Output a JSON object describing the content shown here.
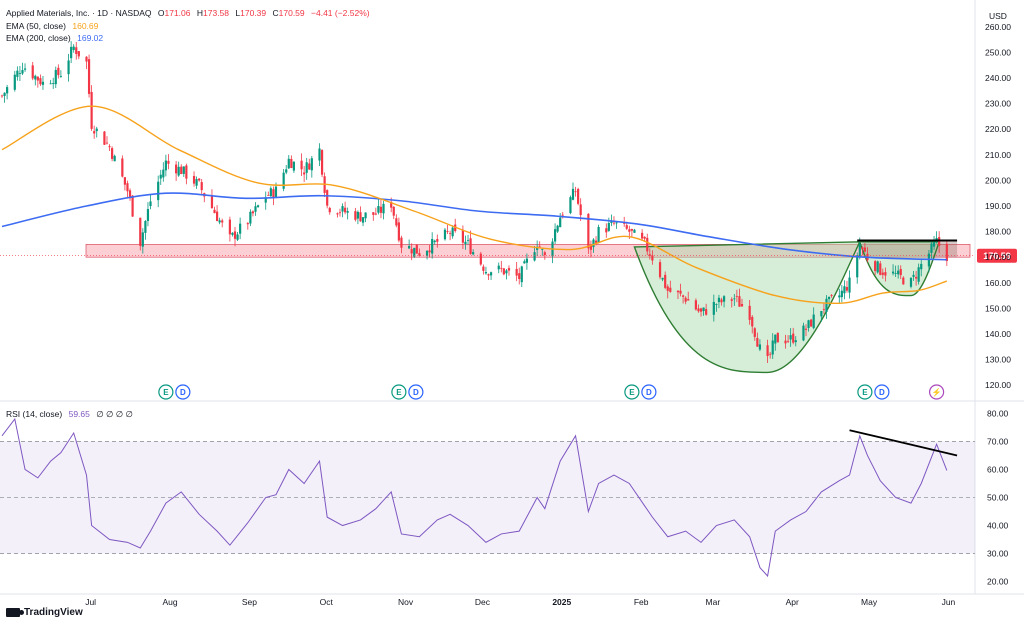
{
  "header": {
    "symbol": "Applied Materials, Inc. · 1D · NASDAQ",
    "open_label": "O",
    "open": "171.06",
    "high_label": "H",
    "high": "173.58",
    "low_label": "L",
    "low": "170.39",
    "close_label": "C",
    "close": "170.59",
    "change": "−4.41 (−2.52%)"
  },
  "ema50": {
    "label": "EMA (50, close)",
    "value": "160.69",
    "color": "#f7a21b"
  },
  "ema200": {
    "label": "EMA (200, close)",
    "value": "169.02",
    "color": "#3d6cf2"
  },
  "rsi_legend": {
    "label": "RSI (14, close)",
    "value": "59.65",
    "extras": "∅ ∅ ∅ ∅"
  },
  "currency": "USD",
  "price_badge": "170.59",
  "footer": {
    "brand": "TradingView"
  },
  "colors": {
    "up": "#089981",
    "down": "#f23645",
    "rsi": "#7e57c2",
    "zone": "#f7a7b0",
    "cup": "#2e7d32"
  },
  "chart_data": [
    {
      "type": "candlestick",
      "title": "Applied Materials, Inc. · 1D · NASDAQ",
      "ylim": [
        115,
        265
      ],
      "yticks": [
        "260.00",
        "250.00",
        "240.00",
        "230.00",
        "220.00",
        "210.00",
        "200.00",
        "190.00",
        "180.00",
        "170.00",
        "160.00",
        "150.00",
        "140.00",
        "130.00",
        "120.00"
      ],
      "xticks": [
        "Jul",
        "Aug",
        "Sep",
        "Oct",
        "Nov",
        "Dec",
        "2025",
        "Feb",
        "Mar",
        "Apr",
        "May",
        "Jun"
      ],
      "x_domain": [
        "2024-06-12",
        "2025-06-27"
      ],
      "close_path": [
        [
          "2024-06-12",
          233
        ],
        [
          "2024-06-20",
          245
        ],
        [
          "2024-06-28",
          238
        ],
        [
          "2024-07-05",
          242
        ],
        [
          "2024-07-10",
          252
        ],
        [
          "2024-07-15",
          246
        ],
        [
          "2024-07-17",
          222
        ],
        [
          "2024-07-24",
          213
        ],
        [
          "2024-07-31",
          196
        ],
        [
          "2024-08-05",
          176
        ],
        [
          "2024-08-09",
          192
        ],
        [
          "2024-08-15",
          207
        ],
        [
          "2024-08-21",
          204
        ],
        [
          "2024-08-28",
          198
        ],
        [
          "2024-09-04",
          186
        ],
        [
          "2024-09-09",
          177
        ],
        [
          "2024-09-16",
          184
        ],
        [
          "2024-09-23",
          194
        ],
        [
          "2024-09-27",
          196
        ],
        [
          "2024-10-02",
          208
        ],
        [
          "2024-10-08",
          204
        ],
        [
          "2024-10-14",
          212
        ],
        [
          "2024-10-17",
          190
        ],
        [
          "2024-10-23",
          188
        ],
        [
          "2024-10-30",
          186
        ],
        [
          "2024-11-05",
          187
        ],
        [
          "2024-11-11",
          191
        ],
        [
          "2024-11-15",
          175
        ],
        [
          "2024-11-22",
          172
        ],
        [
          "2024-11-29",
          176
        ],
        [
          "2024-12-04",
          180
        ],
        [
          "2024-12-11",
          175
        ],
        [
          "2024-12-18",
          165
        ],
        [
          "2024-12-24",
          165
        ],
        [
          "2024-12-31",
          162
        ],
        [
          "2025-01-07",
          176
        ],
        [
          "2025-01-10",
          170
        ],
        [
          "2025-01-16",
          186
        ],
        [
          "2025-01-22",
          196
        ],
        [
          "2025-01-27",
          172
        ],
        [
          "2025-01-31",
          180
        ],
        [
          "2025-02-06",
          183
        ],
        [
          "2025-02-12",
          180
        ],
        [
          "2025-02-18",
          175
        ],
        [
          "2025-02-21",
          170
        ],
        [
          "2025-02-27",
          157
        ],
        [
          "2025-03-06",
          154
        ],
        [
          "2025-03-12",
          148
        ],
        [
          "2025-03-18",
          152
        ],
        [
          "2025-03-25",
          154
        ],
        [
          "2025-03-31",
          148
        ],
        [
          "2025-04-04",
          134
        ],
        [
          "2025-04-07",
          129
        ],
        [
          "2025-04-10",
          138
        ],
        [
          "2025-04-16",
          138
        ],
        [
          "2025-04-22",
          142
        ],
        [
          "2025-04-28",
          150
        ],
        [
          "2025-05-05",
          155
        ],
        [
          "2025-05-09",
          160
        ],
        [
          "2025-05-13",
          175
        ],
        [
          "2025-05-16",
          170
        ],
        [
          "2025-05-21",
          165
        ],
        [
          "2025-05-27",
          163
        ],
        [
          "2025-06-02",
          160
        ],
        [
          "2025-06-06",
          167
        ],
        [
          "2025-06-12",
          176
        ],
        [
          "2025-06-16",
          170.59
        ]
      ],
      "ema50": [
        [
          "2024-06-12",
          212
        ],
        [
          "2024-07-17",
          229
        ],
        [
          "2024-08-20",
          212
        ],
        [
          "2024-09-20",
          199
        ],
        [
          "2024-10-20",
          198
        ],
        [
          "2024-11-20",
          188
        ],
        [
          "2024-12-20",
          177
        ],
        [
          "2025-01-20",
          173
        ],
        [
          "2025-02-12",
          178
        ],
        [
          "2025-03-10",
          166
        ],
        [
          "2025-04-10",
          155
        ],
        [
          "2025-05-05",
          152
        ],
        [
          "2025-05-22",
          156
        ],
        [
          "2025-06-05",
          157
        ],
        [
          "2025-06-16",
          160.69
        ]
      ],
      "ema200": [
        [
          "2024-06-12",
          182
        ],
        [
          "2024-07-15",
          190
        ],
        [
          "2024-08-15",
          195
        ],
        [
          "2024-09-15",
          193
        ],
        [
          "2024-10-15",
          194
        ],
        [
          "2024-11-15",
          192
        ],
        [
          "2024-12-15",
          188
        ],
        [
          "2025-01-15",
          186
        ],
        [
          "2025-02-15",
          183
        ],
        [
          "2025-03-15",
          178
        ],
        [
          "2025-04-15",
          173
        ],
        [
          "2025-05-15",
          170
        ],
        [
          "2025-06-16",
          169.02
        ]
      ],
      "support_zone": [
        170,
        175
      ],
      "cup": {
        "start": [
          "2025-02-14",
          174
        ],
        "bottom": [
          "2025-04-07",
          125
        ],
        "end": [
          "2025-05-13",
          176
        ]
      },
      "handle": {
        "start": [
          "2025-05-13",
          176
        ],
        "bottom": [
          "2025-06-02",
          155
        ],
        "end": [
          "2025-06-13",
          176
        ]
      },
      "resistance_line": {
        "from": [
          "2025-05-12",
          176.5
        ],
        "to": [
          "2025-06-20",
          176.5
        ]
      },
      "events": [
        {
          "date": "2024-08-15",
          "markers": [
            "E",
            "D"
          ]
        },
        {
          "date": "2024-11-14",
          "markers": [
            "E",
            "D"
          ]
        },
        {
          "date": "2025-02-13",
          "markers": [
            "E",
            "D"
          ]
        },
        {
          "date": "2025-05-15",
          "markers": [
            "E",
            "D"
          ]
        },
        {
          "date": "2025-06-12",
          "markers": [
            "⚡"
          ]
        }
      ],
      "last_price": 170.59
    },
    {
      "type": "line",
      "title": "RSI (14, close)",
      "ylim": [
        17,
        83
      ],
      "yticks": [
        "80.00",
        "70.00",
        "60.00",
        "50.00",
        "40.00",
        "30.00",
        "20.00"
      ],
      "bands": {
        "upper": 70,
        "middle": 50,
        "lower": 30
      },
      "path": [
        [
          "2024-06-12",
          72
        ],
        [
          "2024-06-17",
          78
        ],
        [
          "2024-06-21",
          60
        ],
        [
          "2024-06-26",
          57
        ],
        [
          "2024-07-01",
          63
        ],
        [
          "2024-07-05",
          66
        ],
        [
          "2024-07-10",
          73
        ],
        [
          "2024-07-15",
          58
        ],
        [
          "2024-07-17",
          40
        ],
        [
          "2024-07-24",
          35
        ],
        [
          "2024-07-31",
          34
        ],
        [
          "2024-08-05",
          32
        ],
        [
          "2024-08-09",
          38
        ],
        [
          "2024-08-15",
          48
        ],
        [
          "2024-08-21",
          52
        ],
        [
          "2024-08-28",
          44
        ],
        [
          "2024-09-04",
          38
        ],
        [
          "2024-09-09",
          33
        ],
        [
          "2024-09-16",
          41
        ],
        [
          "2024-09-23",
          50
        ],
        [
          "2024-09-27",
          51
        ],
        [
          "2024-10-02",
          60
        ],
        [
          "2024-10-08",
          55
        ],
        [
          "2024-10-14",
          63
        ],
        [
          "2024-10-17",
          43
        ],
        [
          "2024-10-23",
          40
        ],
        [
          "2024-10-30",
          42
        ],
        [
          "2024-11-05",
          46
        ],
        [
          "2024-11-11",
          52
        ],
        [
          "2024-11-15",
          37
        ],
        [
          "2024-11-22",
          36
        ],
        [
          "2024-11-29",
          42
        ],
        [
          "2024-12-04",
          44
        ],
        [
          "2024-12-11",
          40
        ],
        [
          "2024-12-18",
          34
        ],
        [
          "2024-12-24",
          37
        ],
        [
          "2024-12-31",
          38
        ],
        [
          "2025-01-07",
          50
        ],
        [
          "2025-01-10",
          46
        ],
        [
          "2025-01-16",
          63
        ],
        [
          "2025-01-22",
          72
        ],
        [
          "2025-01-27",
          45
        ],
        [
          "2025-01-31",
          55
        ],
        [
          "2025-02-06",
          58
        ],
        [
          "2025-02-12",
          55
        ],
        [
          "2025-02-18",
          47
        ],
        [
          "2025-02-21",
          43
        ],
        [
          "2025-02-27",
          36
        ],
        [
          "2025-03-06",
          38
        ],
        [
          "2025-03-12",
          34
        ],
        [
          "2025-03-18",
          40
        ],
        [
          "2025-03-25",
          42
        ],
        [
          "2025-03-31",
          36
        ],
        [
          "2025-04-04",
          25
        ],
        [
          "2025-04-07",
          22
        ],
        [
          "2025-04-10",
          38
        ],
        [
          "2025-04-16",
          42
        ],
        [
          "2025-04-22",
          45
        ],
        [
          "2025-04-28",
          52
        ],
        [
          "2025-05-05",
          56
        ],
        [
          "2025-05-09",
          58
        ],
        [
          "2025-05-13",
          72
        ],
        [
          "2025-05-16",
          65
        ],
        [
          "2025-05-21",
          56
        ],
        [
          "2025-05-27",
          50
        ],
        [
          "2025-06-02",
          48
        ],
        [
          "2025-06-06",
          55
        ],
        [
          "2025-06-12",
          69
        ],
        [
          "2025-06-16",
          59.65
        ]
      ],
      "trend_line": {
        "from": [
          "2025-05-09",
          74
        ],
        "to": [
          "2025-06-20",
          65
        ]
      }
    }
  ]
}
